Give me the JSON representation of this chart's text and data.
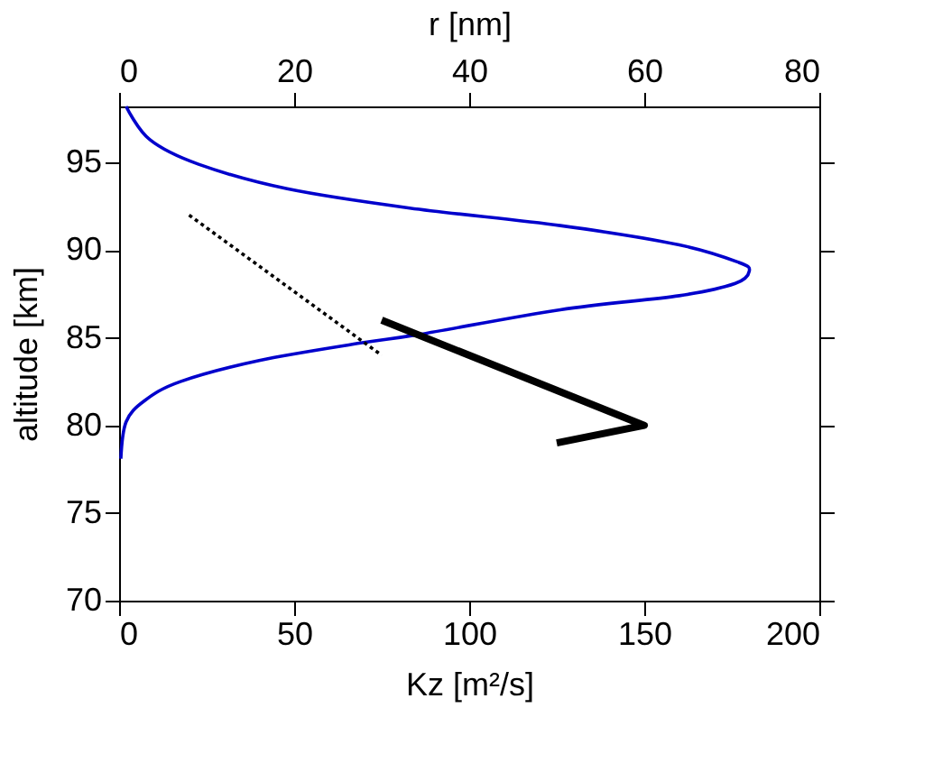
{
  "chart_data": {
    "type": "line",
    "xlabel": "Kz [m²/s]",
    "ylabel": "altitude [km]",
    "x2label": "r [nm]",
    "xlim": [
      0,
      200
    ],
    "xticks": [
      0,
      50,
      100,
      150,
      200
    ],
    "x2lim": [
      0,
      80
    ],
    "x2ticks": [
      0,
      20,
      40,
      60,
      80
    ],
    "ylim": [
      70,
      98.2
    ],
    "yticks": [
      70,
      75,
      80,
      85,
      90,
      95
    ],
    "grid": false,
    "marker": "none",
    "series": [
      {
        "color": "#0000cc",
        "line_style": "solid",
        "x": [
          2,
          8.8,
          22.7,
          48,
          83,
          126,
          160,
          177,
          180,
          176,
          160,
          126,
          86,
          69,
          40,
          17.5,
          7.2,
          2,
          0.5
        ],
        "values": [
          98.2,
          96.3,
          94.9,
          93.5,
          92.4,
          91.4,
          90.3,
          89.3,
          88.8,
          88.1,
          87.4,
          86.6,
          85.2,
          84.7,
          83.7,
          82.5,
          81.4,
          80.2,
          78.1
        ]
      },
      {
        "color": "#000000",
        "line_style": "solid",
        "x": [
          75,
          150,
          125
        ],
        "values": [
          86.0,
          80.0,
          79.0
        ]
      },
      {
        "color": "#000000",
        "line_style": "dotted",
        "x": [
          20,
          75
        ],
        "values": [
          92.0,
          84.0
        ]
      }
    ]
  }
}
